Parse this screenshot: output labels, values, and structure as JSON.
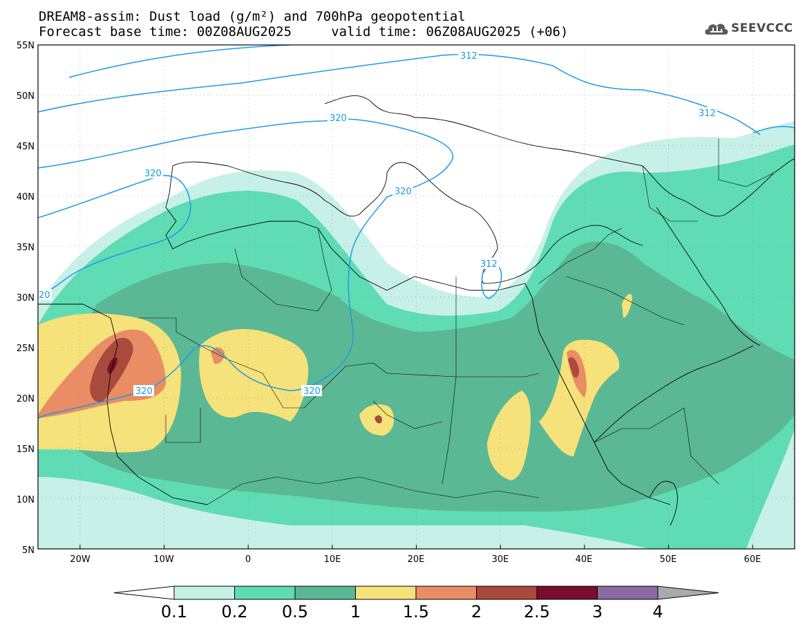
{
  "header": {
    "title_line1": "DREAM8-assim: Dust load (g/m²) and 700hPa geopotential",
    "title_line2": "Forecast base time: 00Z08AUG2025     valid time: 06Z08AUG2025 (+06)",
    "logo_text": "SEEVCCC",
    "logo_icon": "cloud-logo-icon"
  },
  "map": {
    "lon_range": [
      -25,
      65
    ],
    "lat_range": [
      5,
      55
    ],
    "lat_ticks": [
      "55N",
      "50N",
      "45N",
      "40N",
      "35N",
      "30N",
      "25N",
      "20N",
      "15N",
      "10N",
      "5N"
    ],
    "lon_ticks": [
      "20W",
      "10W",
      "0",
      "10E",
      "20E",
      "30E",
      "40E",
      "50E",
      "60E"
    ],
    "contour_labels": [
      "312",
      "312",
      "320",
      "320",
      "320",
      "320",
      "312",
      "20",
      "320"
    ],
    "contour_color": "#1a9be6"
  },
  "colorbar": {
    "levels": [
      "0.1",
      "0.2",
      "0.5",
      "1",
      "1.5",
      "2",
      "2.5",
      "3",
      "4"
    ],
    "colors": [
      "#c7f0e8",
      "#5fdcb4",
      "#5bb894",
      "#f5e27a",
      "#ea8c64",
      "#a84a3c",
      "#7a0d2c",
      "#8a6aa0"
    ],
    "under_color": "#ffffff",
    "over_color": "#aaaaaa"
  }
}
